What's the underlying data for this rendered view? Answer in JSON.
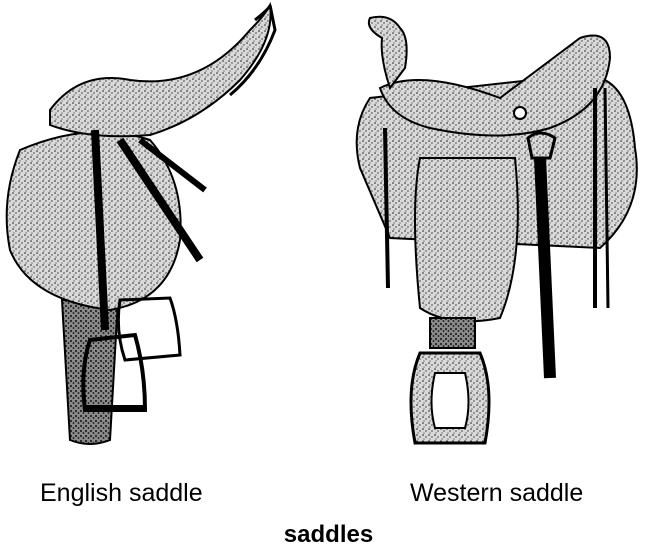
{
  "illustrations": {
    "english": {
      "label": "English saddle",
      "icon": "english-saddle-icon"
    },
    "western": {
      "label": "Western saddle",
      "icon": "western-saddle-icon"
    }
  },
  "caption": "saddles",
  "colors": {
    "ink": "#000000",
    "background": "#ffffff"
  }
}
